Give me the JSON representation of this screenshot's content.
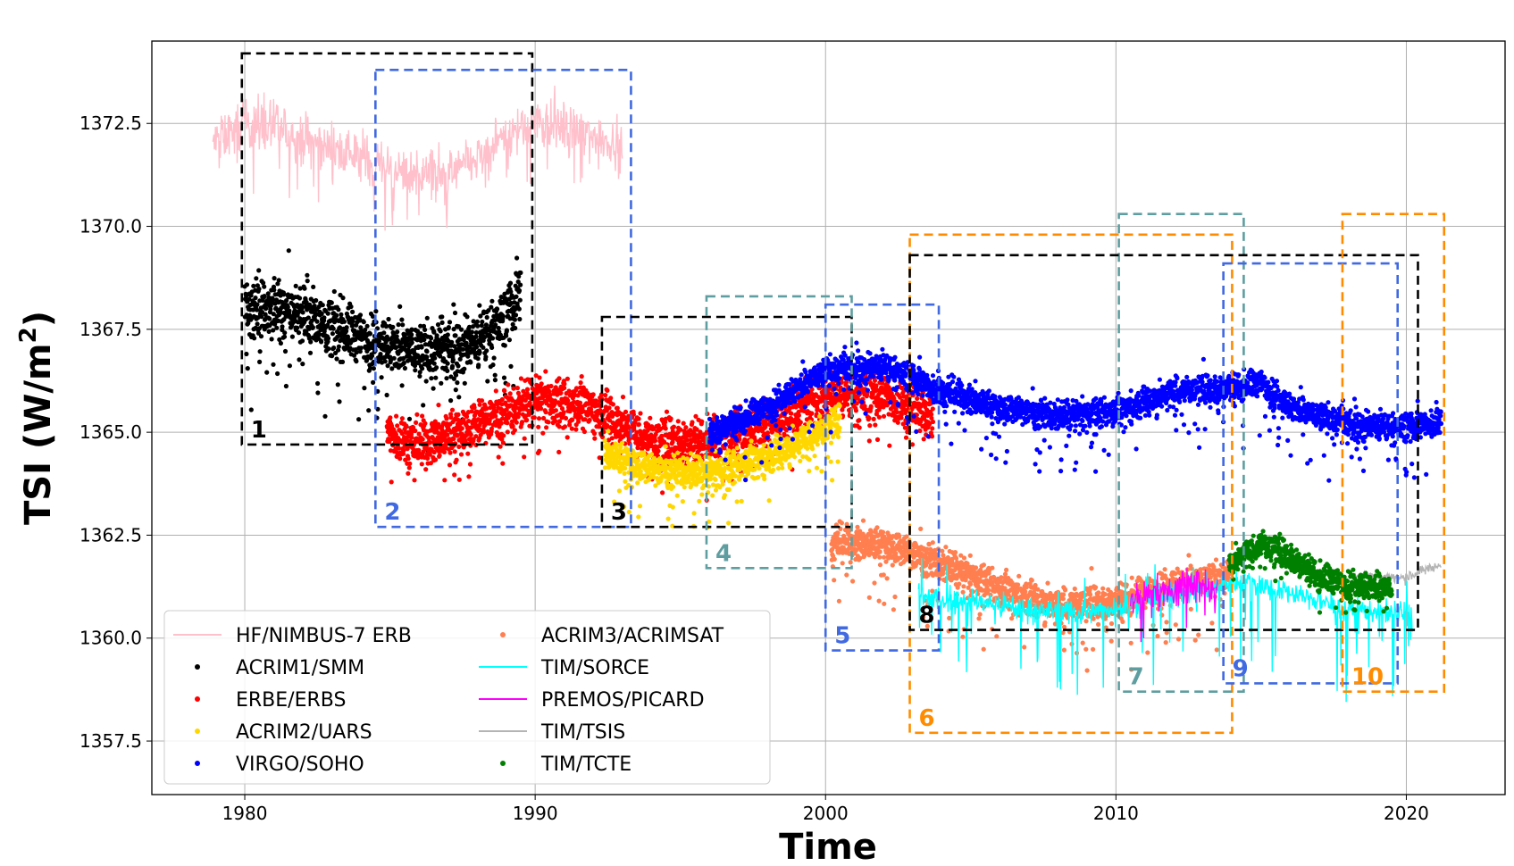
{
  "chart_data": {
    "type": "line",
    "xlabel": "Time",
    "ylabel": "TSI (W/m",
    "ylabel_sup": "2",
    "ylabel_close": ")",
    "xlim": [
      1976.8,
      2023.4
    ],
    "ylim": [
      1356.2,
      1374.5
    ],
    "xticks": [
      1980,
      1990,
      2000,
      2010,
      2020
    ],
    "xtick_labels": [
      "1980",
      "1990",
      "2000",
      "2010",
      "2020"
    ],
    "yticks": [
      1357.5,
      1360.0,
      1362.5,
      1365.0,
      1367.5,
      1370.0,
      1372.5
    ],
    "ytick_labels": [
      "1357.5",
      "1360.0",
      "1362.5",
      "1365.0",
      "1367.5",
      "1370.0",
      "1372.5"
    ],
    "grid": true,
    "legend_position": "lower-left",
    "series": [
      {
        "name": "HF/NIMBUS-7 ERB",
        "style": "line",
        "color": "#ffc0cb",
        "noise": 0.5,
        "spike": 1.5,
        "x": [
          1978.9,
          1980.0,
          1981.0,
          1982.0,
          1983.0,
          1984.0,
          1985.0,
          1986.0,
          1987.0,
          1988.0,
          1989.0,
          1990.0,
          1991.0,
          1992.0,
          1993.0
        ],
        "y": [
          1372.0,
          1372.5,
          1372.4,
          1372.1,
          1371.9,
          1371.7,
          1371.4,
          1371.3,
          1371.3,
          1371.6,
          1372.2,
          1372.6,
          1372.4,
          1372.2,
          1372.0
        ]
      },
      {
        "name": "ACRIM1/SMM",
        "style": "dots",
        "color": "#000000",
        "noise": 0.6,
        "spike": 2.0,
        "x": [
          1980.0,
          1981.0,
          1982.0,
          1983.0,
          1984.0,
          1985.0,
          1986.0,
          1987.0,
          1988.0,
          1989.0,
          1989.5
        ],
        "y": [
          1368.0,
          1368.0,
          1367.9,
          1367.6,
          1367.3,
          1367.1,
          1367.0,
          1367.0,
          1367.2,
          1367.8,
          1368.4
        ]
      },
      {
        "name": "ERBE/ERBS",
        "style": "dots",
        "color": "#ff0000",
        "noise": 0.5,
        "spike": 1.0,
        "x": [
          1984.9,
          1986.0,
          1988.0,
          1990.0,
          1992.0,
          1994.0,
          1996.0,
          1998.0,
          2000.0,
          2002.0,
          2003.7
        ],
        "y": [
          1365.0,
          1364.7,
          1365.2,
          1365.8,
          1365.6,
          1364.8,
          1364.8,
          1365.2,
          1365.9,
          1365.9,
          1365.4
        ]
      },
      {
        "name": "ACRIM2/UARS",
        "style": "dots",
        "color": "#ffd700",
        "noise": 0.35,
        "spike": 1.2,
        "x": [
          1992.4,
          1994.0,
          1996.0,
          1998.0,
          1999.5,
          2000.5
        ],
        "y": [
          1364.5,
          1364.1,
          1364.0,
          1364.4,
          1364.9,
          1365.3
        ]
      },
      {
        "name": "VIRGO/SOHO",
        "style": "dots",
        "color": "#0000ff",
        "noise": 0.3,
        "spike": 1.3,
        "x": [
          1996.0,
          1998.0,
          2000.0,
          2002.0,
          2004.0,
          2006.0,
          2008.0,
          2010.0,
          2012.0,
          2014.0,
          2015.0,
          2016.0,
          2018.0,
          2020.0,
          2021.2
        ],
        "y": [
          1365.0,
          1365.6,
          1366.5,
          1366.6,
          1366.0,
          1365.6,
          1365.4,
          1365.5,
          1366.0,
          1366.1,
          1366.2,
          1365.6,
          1365.2,
          1365.1,
          1365.3
        ]
      },
      {
        "name": "ACRIM3/ACRIMSAT",
        "style": "dots",
        "color": "#ff7f50",
        "noise": 0.35,
        "spike": 1.5,
        "x": [
          2000.2,
          2002.0,
          2004.0,
          2006.0,
          2008.0,
          2010.0,
          2012.0,
          2013.9
        ],
        "y": [
          1362.3,
          1362.3,
          1361.8,
          1361.2,
          1360.8,
          1360.9,
          1361.3,
          1361.5
        ]
      },
      {
        "name": "TIM/SORCE",
        "style": "line",
        "color": "#00ffff",
        "noise": 0.25,
        "spike": 2.2,
        "x": [
          2003.2,
          2005.0,
          2007.0,
          2009.0,
          2011.0,
          2013.0,
          2014.5,
          2016.0,
          2018.0,
          2020.2
        ],
        "y": [
          1361.0,
          1360.9,
          1360.7,
          1360.6,
          1360.9,
          1361.2,
          1361.4,
          1361.1,
          1360.7,
          1360.6
        ]
      },
      {
        "name": "PREMOS/PICARD",
        "style": "line",
        "color": "#ff00ff",
        "noise": 0.35,
        "spike": 0.9,
        "x": [
          2010.5,
          2011.5,
          2012.5,
          2013.5
        ],
        "y": [
          1360.9,
          1361.1,
          1361.3,
          1361.2
        ]
      },
      {
        "name": "TIM/TSIS",
        "style": "line",
        "color": "#b4b4b4",
        "noise": 0.1,
        "spike": 0.2,
        "x": [
          2018.0,
          2019.0,
          2020.0,
          2021.2
        ],
        "y": [
          1361.5,
          1361.5,
          1361.5,
          1361.8
        ]
      },
      {
        "name": "TIM/TCTE",
        "style": "dots",
        "color": "#008000",
        "noise": 0.3,
        "spike": 0.6,
        "x": [
          2013.9,
          2015.0,
          2016.0,
          2017.0,
          2018.0,
          2019.5
        ],
        "y": [
          1361.8,
          1362.3,
          1362.0,
          1361.5,
          1361.3,
          1361.2
        ]
      }
    ],
    "overlap_boxes": [
      {
        "label": "1",
        "color": "#000000",
        "x0": 1979.9,
        "x1": 1989.9,
        "y0": 1364.7,
        "y1": 1374.2
      },
      {
        "label": "2",
        "color": "#4169e1",
        "x0": 1984.5,
        "x1": 1993.3,
        "y0": 1362.7,
        "y1": 1373.8
      },
      {
        "label": "3",
        "color": "#000000",
        "x0": 1992.3,
        "x1": 2000.9,
        "y0": 1362.7,
        "y1": 1367.8
      },
      {
        "label": "4",
        "color": "#5f9ea0",
        "x0": 1995.9,
        "x1": 2000.9,
        "y0": 1361.7,
        "y1": 1368.3
      },
      {
        "label": "5",
        "color": "#4169e1",
        "x0": 2000.0,
        "x1": 2003.9,
        "y0": 1359.7,
        "y1": 1368.1
      },
      {
        "label": "6",
        "color": "#ff8c00",
        "x0": 2002.9,
        "x1": 2014.0,
        "y0": 1357.7,
        "y1": 1369.8
      },
      {
        "label": "7",
        "color": "#5f9ea0",
        "x0": 2010.1,
        "x1": 2014.4,
        "y0": 1358.7,
        "y1": 1370.3
      },
      {
        "label": "8",
        "color": "#000000",
        "x0": 2002.9,
        "x1": 2020.4,
        "y0": 1360.2,
        "y1": 1369.3
      },
      {
        "label": "9",
        "color": "#4169e1",
        "x0": 2013.7,
        "x1": 2019.7,
        "y0": 1358.9,
        "y1": 1369.1
      },
      {
        "label": "10",
        "color": "#ff8c00",
        "x0": 2017.8,
        "x1": 2021.3,
        "y0": 1358.7,
        "y1": 1370.3
      }
    ]
  }
}
